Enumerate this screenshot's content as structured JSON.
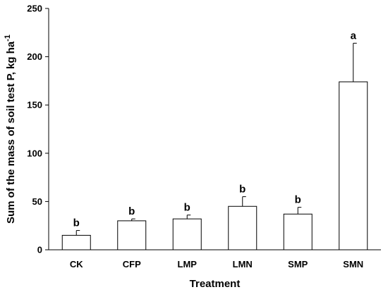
{
  "chart_data": {
    "type": "bar",
    "title": "",
    "xlabel": "Treatment",
    "ylabel": "Sum of the mass of soil test P, kg ha",
    "ylabel_superscript": "-1",
    "categories": [
      "CK",
      "CFP",
      "LMP",
      "LMN",
      "SMP",
      "SMN"
    ],
    "values": [
      15,
      30,
      32,
      45,
      37,
      174
    ],
    "errors": [
      5,
      2,
      4,
      10,
      7,
      40
    ],
    "significance": [
      "b",
      "b",
      "b",
      "b",
      "b",
      "a"
    ],
    "ylim": [
      0,
      250
    ],
    "yticks": [
      0,
      50,
      100,
      150,
      200,
      250
    ],
    "grid": false,
    "colors": {
      "bar_fill": "#ffffff",
      "bar_stroke": "#000000"
    }
  }
}
